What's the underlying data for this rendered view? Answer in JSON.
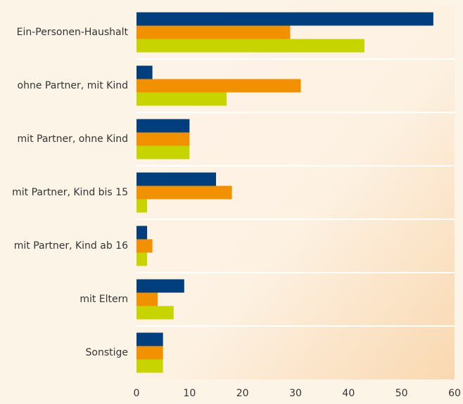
{
  "chart_data": {
    "type": "hbar",
    "categories": [
      "Ein-Personen-Haushalt",
      "ohne Partner, mit Kind",
      "mit Partner, ohne Kind",
      "mit Partner, Kind bis 15",
      "mit Partner, Kind ab 16",
      "mit Eltern",
      "Sonstige"
    ],
    "series": [
      {
        "color": "#003e7e",
        "values": [
          56,
          3,
          10,
          15,
          2,
          9,
          5
        ]
      },
      {
        "color": "#f29100",
        "values": [
          29,
          31,
          10,
          18,
          3,
          4,
          5
        ]
      },
      {
        "color": "#c8d400",
        "values": [
          43,
          17,
          10,
          2,
          2,
          7,
          5
        ]
      }
    ],
    "xlim": [
      0,
      60
    ],
    "xticks": [
      0,
      10,
      20,
      30,
      40,
      50,
      60
    ]
  }
}
